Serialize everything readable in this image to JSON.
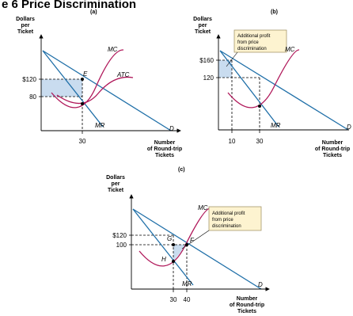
{
  "figure": {
    "title": "e 6   Price Discrimination"
  },
  "colors": {
    "demand": "#1f6fa8",
    "mr": "#1f6fa8",
    "mc": "#b0185a",
    "atc": "#b0185a",
    "profit_area": "#c9dcef",
    "callout_fill": "#fdf3d0",
    "callout_border": "#9a8a5a",
    "dashed": "#000000",
    "axis": "#000000"
  },
  "chart_data": [
    {
      "type": "line",
      "panel_label": "(a)",
      "ylabel": [
        "Dollars",
        "per",
        "Ticket"
      ],
      "xlabel": [
        "Number",
        "of Round-trip",
        "Tickets"
      ],
      "y_ticks": [
        {
          "label": "$120",
          "value": 120
        },
        {
          "label": "80",
          "value": 80
        }
      ],
      "x_ticks": [
        {
          "label": "30",
          "value": 30
        }
      ],
      "curves": [
        "D",
        "MR",
        "MC",
        "ATC"
      ],
      "points": [
        {
          "label": "E",
          "x": 30,
          "y": 120
        }
      ],
      "shaded_profit": {
        "x": [
          0,
          30
        ],
        "y": [
          80,
          120
        ]
      }
    },
    {
      "type": "line",
      "panel_label": "(b)",
      "ylabel": [
        "Dollars",
        "per",
        "Ticket"
      ],
      "xlabel": [
        "Number",
        "of Round-trip",
        "Tickets"
      ],
      "y_ticks": [
        {
          "label": "$160",
          "value": 160
        },
        {
          "label": "120",
          "value": 120
        }
      ],
      "x_ticks": [
        {
          "label": "10",
          "value": 10
        },
        {
          "label": "30",
          "value": 30
        }
      ],
      "curves": [
        "D",
        "MR",
        "MC"
      ],
      "annotation": [
        "Additional profit",
        "from price",
        "discrimination"
      ]
    },
    {
      "type": "line",
      "panel_label": "(c)",
      "ylabel": [
        "Dollars",
        "per",
        "Ticket"
      ],
      "xlabel": [
        "Number",
        "of Round-trip",
        "Tickets"
      ],
      "y_ticks": [
        {
          "label": "$120",
          "value": 120
        },
        {
          "label": "100",
          "value": 100
        }
      ],
      "x_ticks": [
        {
          "label": "30",
          "value": 30
        },
        {
          "label": "40",
          "value": 40
        }
      ],
      "curves": [
        "D",
        "MR",
        "MC"
      ],
      "points": [
        {
          "label": "G",
          "x": 30,
          "y": 100
        },
        {
          "label": "F",
          "x": 40,
          "y": 100
        },
        {
          "label": "H",
          "x": 30,
          "y": 60
        }
      ],
      "annotation": [
        "Additional profit",
        "from price",
        "discrimination"
      ]
    }
  ]
}
